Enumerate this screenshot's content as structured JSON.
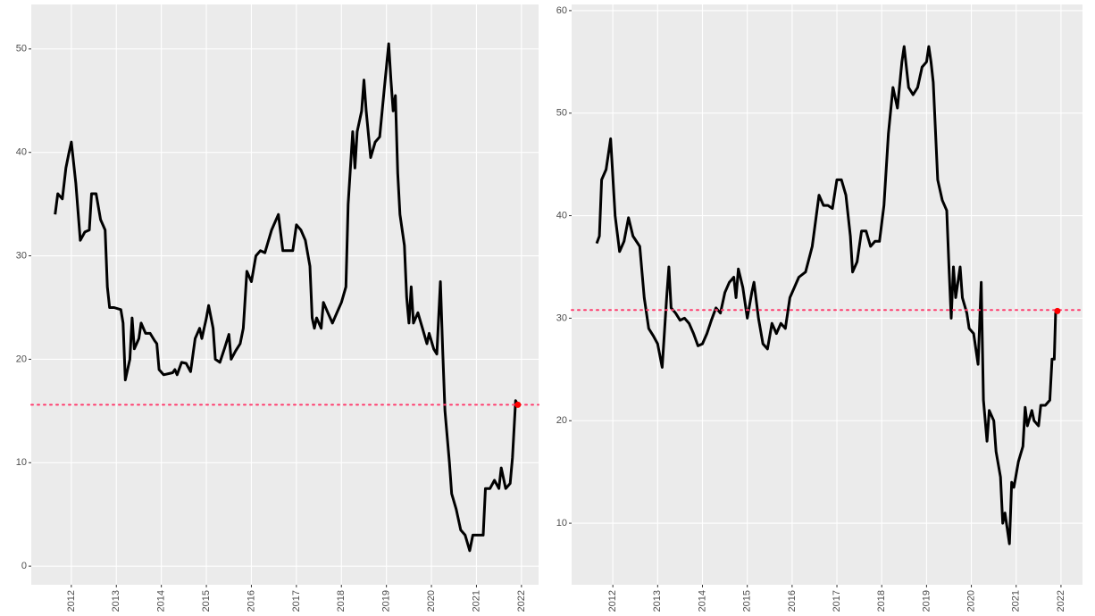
{
  "chart_data": [
    {
      "type": "line",
      "color": "#000000",
      "x": [
        2011.64,
        2011.7,
        2011.8,
        2011.88,
        2011.95,
        2012.0,
        2012.1,
        2012.2,
        2012.3,
        2012.4,
        2012.45,
        2012.55,
        2012.65,
        2012.75,
        2012.8,
        2012.85,
        2012.95,
        2013.1,
        2013.15,
        2013.2,
        2013.3,
        2013.35,
        2013.4,
        2013.5,
        2013.55,
        2013.65,
        2013.75,
        2013.85,
        2013.9,
        2013.95,
        2014.05,
        2014.25,
        2014.3,
        2014.35,
        2014.45,
        2014.55,
        2014.65,
        2014.75,
        2014.85,
        2014.9,
        2015.0,
        2015.05,
        2015.15,
        2015.2,
        2015.3,
        2015.4,
        2015.5,
        2015.55,
        2015.65,
        2015.75,
        2015.82,
        2015.9,
        2016.0,
        2016.1,
        2016.2,
        2016.3,
        2016.45,
        2016.6,
        2016.7,
        2016.8,
        2016.92,
        2017.0,
        2017.1,
        2017.2,
        2017.3,
        2017.35,
        2017.4,
        2017.45,
        2017.55,
        2017.6,
        2017.7,
        2017.8,
        2017.9,
        2018.0,
        2018.1,
        2018.15,
        2018.25,
        2018.3,
        2018.35,
        2018.45,
        2018.5,
        2018.55,
        2018.65,
        2018.75,
        2018.85,
        2018.95,
        2019.05,
        2019.1,
        2019.15,
        2019.2,
        2019.25,
        2019.3,
        2019.4,
        2019.45,
        2019.5,
        2019.55,
        2019.6,
        2019.7,
        2019.8,
        2019.9,
        2019.95,
        2020.05,
        2020.12,
        2020.2,
        2020.25,
        2020.3,
        2020.4,
        2020.45,
        2020.55,
        2020.65,
        2020.75,
        2020.85,
        2020.92,
        2021.05,
        2021.15,
        2021.2,
        2021.3,
        2021.4,
        2021.5,
        2021.55,
        2021.65,
        2021.75,
        2021.8,
        2021.87,
        2021.92
      ],
      "values": [
        34,
        36,
        35.5,
        38.5,
        40,
        41,
        37,
        31.5,
        32.3,
        32.5,
        36,
        36,
        33.5,
        32.5,
        27,
        25,
        25,
        24.8,
        23.5,
        18,
        20,
        24,
        21,
        22,
        23.5,
        22.5,
        22.5,
        21.8,
        21.5,
        19,
        18.5,
        18.7,
        19,
        18.5,
        19.7,
        19.6,
        18.8,
        22,
        23,
        22,
        24,
        25.2,
        23,
        20,
        19.7,
        21,
        22.4,
        20,
        20.8,
        21.5,
        23,
        28.5,
        27.5,
        30,
        30.5,
        30.3,
        32.5,
        34,
        30.5,
        30.5,
        30.5,
        33,
        32.5,
        31.5,
        29,
        24,
        23,
        24,
        23,
        25.5,
        24.5,
        23.5,
        24.5,
        25.5,
        27,
        35,
        42,
        38.5,
        42,
        44,
        47,
        44,
        39.5,
        41,
        41.5,
        46,
        50.5,
        47,
        44,
        45.5,
        38,
        34,
        31,
        26,
        23.5,
        27,
        23.5,
        24.5,
        23,
        21.5,
        22.5,
        21,
        20.5,
        27.5,
        21,
        15,
        10,
        7,
        5.5,
        3.5,
        3,
        1.5,
        3,
        3,
        3,
        7.5,
        7.5,
        8.3,
        7.5,
        9.5,
        7.5,
        8,
        10.5,
        16,
        15.6
      ],
      "reference_line": {
        "value": 15.6,
        "color": "#ff3d6e"
      },
      "point_color": "#ff0000",
      "xlim": [
        2011.11,
        2022.38
      ],
      "xticks": [
        2012,
        2013,
        2014,
        2015,
        2016,
        2017,
        2018,
        2019,
        2020,
        2021,
        2022
      ],
      "ylim": [
        -1.8,
        54.3
      ],
      "yticks": [
        0,
        10,
        20,
        30,
        40,
        50
      ],
      "grid": true
    },
    {
      "type": "line",
      "color": "#000000",
      "x": [
        2011.64,
        2011.7,
        2011.75,
        2011.85,
        2011.95,
        2012.05,
        2012.15,
        2012.25,
        2012.35,
        2012.45,
        2012.6,
        2012.7,
        2012.8,
        2012.9,
        2013.0,
        2013.1,
        2013.2,
        2013.25,
        2013.3,
        2013.4,
        2013.5,
        2013.6,
        2013.7,
        2013.8,
        2013.9,
        2014.0,
        2014.1,
        2014.2,
        2014.3,
        2014.4,
        2014.5,
        2014.6,
        2014.7,
        2014.75,
        2014.8,
        2014.9,
        2015.0,
        2015.1,
        2015.15,
        2015.25,
        2015.35,
        2015.45,
        2015.55,
        2015.65,
        2015.75,
        2015.85,
        2015.95,
        2016.05,
        2016.15,
        2016.3,
        2016.45,
        2016.6,
        2016.7,
        2016.8,
        2016.9,
        2017.0,
        2017.1,
        2017.2,
        2017.3,
        2017.35,
        2017.45,
        2017.55,
        2017.65,
        2017.75,
        2017.85,
        2017.95,
        2018.05,
        2018.15,
        2018.25,
        2018.35,
        2018.45,
        2018.5,
        2018.6,
        2018.7,
        2018.8,
        2018.9,
        2019.0,
        2019.05,
        2019.1,
        2019.15,
        2019.25,
        2019.35,
        2019.45,
        2019.5,
        2019.55,
        2019.6,
        2019.65,
        2019.75,
        2019.8,
        2019.9,
        2019.95,
        2020.05,
        2020.15,
        2020.22,
        2020.27,
        2020.35,
        2020.4,
        2020.5,
        2020.55,
        2020.65,
        2020.7,
        2020.75,
        2020.85,
        2020.9,
        2020.95,
        2021.05,
        2021.15,
        2021.2,
        2021.25,
        2021.35,
        2021.4,
        2021.5,
        2021.55,
        2021.65,
        2021.75,
        2021.8,
        2021.85,
        2021.88,
        2021.92
      ],
      "values": [
        37.3,
        38,
        43.5,
        44.5,
        47.5,
        40,
        36.5,
        37.5,
        39.8,
        38,
        37,
        32,
        29,
        28.3,
        27.5,
        25.2,
        32,
        35,
        31,
        30.5,
        29.8,
        30,
        29.5,
        28.5,
        27.3,
        27.5,
        28.5,
        29.8,
        31,
        30.5,
        32.5,
        33.5,
        34,
        32,
        34.8,
        33,
        30,
        32.5,
        33.5,
        30,
        27.5,
        27,
        29.5,
        28.5,
        29.5,
        29,
        32,
        33,
        34,
        34.5,
        37,
        42,
        41,
        41,
        40.7,
        43.5,
        43.5,
        42,
        38,
        34.5,
        35.5,
        38.5,
        38.5,
        37,
        37.5,
        37.5,
        41,
        48,
        52.5,
        50.5,
        55,
        56.5,
        52.5,
        51.8,
        52.5,
        54.5,
        55,
        56.5,
        55,
        53,
        43.5,
        41.5,
        40.5,
        35,
        30,
        35,
        32,
        35,
        32,
        30.5,
        29,
        28.5,
        25.5,
        33.5,
        22,
        18,
        21,
        20,
        17,
        14.5,
        10,
        11,
        8,
        14,
        13.5,
        16,
        17.5,
        21.3,
        19.5,
        21,
        20,
        19.5,
        21.5,
        21.5,
        22,
        26,
        26,
        30.5,
        30.7
      ],
      "reference_line": {
        "value": 30.8,
        "color": "#ff3d6e"
      },
      "point_color": "#ff0000",
      "xlim": [
        2011.08,
        2022.48
      ],
      "xticks": [
        2012,
        2013,
        2014,
        2015,
        2016,
        2017,
        2018,
        2019,
        2020,
        2021,
        2022
      ],
      "ylim": [
        4.0,
        60.6
      ],
      "yticks": [
        10,
        20,
        30,
        40,
        50,
        60
      ],
      "grid": true
    }
  ]
}
